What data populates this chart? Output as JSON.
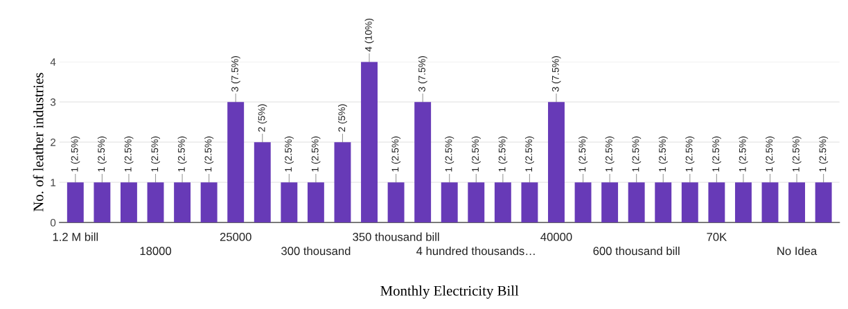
{
  "chart_data": {
    "type": "bar",
    "xlabel": "Monthly Electricity Bill",
    "ylabel": "No. of leather industries",
    "categories": [
      "1.2 M bill",
      null,
      null,
      "18000",
      null,
      null,
      "25000",
      null,
      null,
      "300 thousand",
      null,
      null,
      "350 thousand bill",
      null,
      null,
      "4 hundred thousands…",
      null,
      null,
      "40000",
      null,
      null,
      "600 thousand bill",
      null,
      null,
      "70K",
      null,
      null,
      "No Idea",
      null
    ],
    "values": [
      1,
      1,
      1,
      1,
      1,
      1,
      3,
      2,
      1,
      1,
      2,
      4,
      1,
      3,
      1,
      1,
      1,
      1,
      3,
      1,
      1,
      1,
      1,
      1,
      1,
      1,
      1,
      1,
      1
    ],
    "value_labels": [
      "1 (2.5%)",
      "1 (2.5%)",
      "1 (2.5%)",
      "1 (2.5%)",
      "1 (2.5%)",
      "1 (2.5%)",
      "3 (7.5%)",
      "2 (5%)",
      "1 (2.5%)",
      "1 (2.5%)",
      "2 (5%)",
      "4 (10%)",
      "1 (2.5%)",
      "3 (7.5%)",
      "1 (2.5%)",
      "1 (2.5%)",
      "1 (2.5%)",
      "1 (2.5%)",
      "3 (7.5%)",
      "1 (2.5%)",
      "1 (2.5%)",
      "1 (2.5%)",
      "1 (2.5%)",
      "1 (2.5%)",
      "1 (2.5%)",
      "1 (2.5%)",
      "1 (2.5%)",
      "1 (2.5%)",
      "1 (2.5%)"
    ],
    "color": "#673ab7",
    "ylim": [
      0,
      4
    ],
    "yticks": [
      0,
      1,
      2,
      3,
      4
    ],
    "grid": "y"
  }
}
